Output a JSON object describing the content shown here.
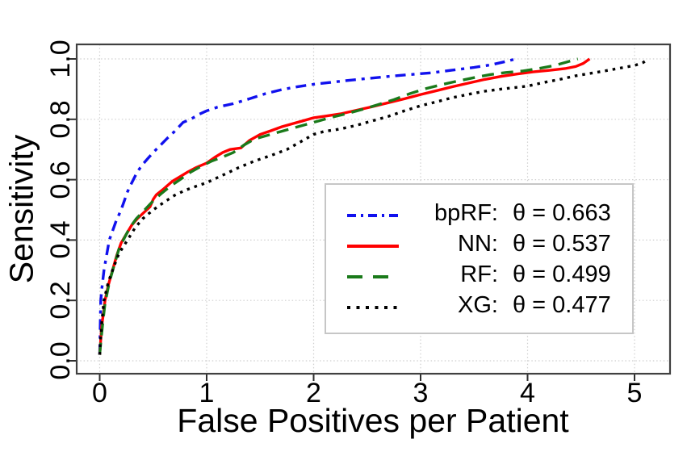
{
  "chart_data": {
    "type": "line",
    "title": "",
    "xlabel": "False Positives per Patient",
    "ylabel": "Sensitivity",
    "x_ticks": [
      "0",
      "1",
      "2",
      "3",
      "4",
      "5"
    ],
    "y_ticks": [
      "0.0",
      "0.2",
      "0.4",
      "0.6",
      "0.8",
      "1.0"
    ],
    "x_tick_values": [
      0,
      1,
      2,
      3,
      4,
      5
    ],
    "y_tick_values": [
      0,
      0.2,
      0.4,
      0.6,
      0.8,
      1.0
    ],
    "xlim": [
      -0.215,
      5.33
    ],
    "ylim": [
      -0.043,
      1.048
    ],
    "grid": true,
    "grid_style": "dotted",
    "legend_position": "inside lower-right",
    "colors": {
      "bpRF": "#1111ee",
      "NN": "#ff0000",
      "RF": "#1a7a1a",
      "XG": "#000000",
      "grid": "#cfcfcf",
      "frame": "#404040"
    },
    "series": [
      {
        "name": "bpRF",
        "metric": "theta",
        "value": 0.663,
        "legend_name": "bpRF:",
        "legend_value": "θ = 0.663",
        "color": "#1111ee",
        "line_style": "dash-dot",
        "points": [
          [
            0.0,
            0.02
          ],
          [
            0.005,
            0.12
          ],
          [
            0.01,
            0.2
          ],
          [
            0.02,
            0.24
          ],
          [
            0.04,
            0.3
          ],
          [
            0.06,
            0.34
          ],
          [
            0.09,
            0.4
          ],
          [
            0.12,
            0.43
          ],
          [
            0.15,
            0.46
          ],
          [
            0.2,
            0.5
          ],
          [
            0.23,
            0.53
          ],
          [
            0.26,
            0.56
          ],
          [
            0.3,
            0.59
          ],
          [
            0.35,
            0.625
          ],
          [
            0.4,
            0.65
          ],
          [
            0.45,
            0.67
          ],
          [
            0.5,
            0.69
          ],
          [
            0.57,
            0.715
          ],
          [
            0.64,
            0.74
          ],
          [
            0.7,
            0.76
          ],
          [
            0.78,
            0.79
          ],
          [
            0.85,
            0.8
          ],
          [
            0.92,
            0.815
          ],
          [
            1.0,
            0.828
          ],
          [
            1.1,
            0.84
          ],
          [
            1.25,
            0.852
          ],
          [
            1.4,
            0.868
          ],
          [
            1.55,
            0.885
          ],
          [
            1.7,
            0.898
          ],
          [
            1.85,
            0.908
          ],
          [
            2.0,
            0.916
          ],
          [
            2.15,
            0.922
          ],
          [
            2.3,
            0.928
          ],
          [
            2.5,
            0.935
          ],
          [
            2.7,
            0.942
          ],
          [
            2.9,
            0.948
          ],
          [
            3.1,
            0.954
          ],
          [
            3.3,
            0.963
          ],
          [
            3.5,
            0.972
          ],
          [
            3.65,
            0.98
          ],
          [
            3.78,
            0.99
          ],
          [
            3.89,
            1.0
          ]
        ]
      },
      {
        "name": "NN",
        "metric": "theta",
        "value": 0.537,
        "legend_name": "NN:",
        "legend_value": "θ = 0.537",
        "color": "#ff0000",
        "line_style": "solid",
        "points": [
          [
            0.0,
            0.02
          ],
          [
            0.01,
            0.07
          ],
          [
            0.02,
            0.12
          ],
          [
            0.04,
            0.17
          ],
          [
            0.05,
            0.2
          ],
          [
            0.08,
            0.25
          ],
          [
            0.12,
            0.3
          ],
          [
            0.16,
            0.35
          ],
          [
            0.2,
            0.39
          ],
          [
            0.25,
            0.42
          ],
          [
            0.3,
            0.45
          ],
          [
            0.35,
            0.47
          ],
          [
            0.41,
            0.49
          ],
          [
            0.47,
            0.51
          ],
          [
            0.5,
            0.535
          ],
          [
            0.53,
            0.55
          ],
          [
            0.6,
            0.57
          ],
          [
            0.68,
            0.595
          ],
          [
            0.75,
            0.61
          ],
          [
            0.82,
            0.625
          ],
          [
            0.9,
            0.64
          ],
          [
            1.0,
            0.655
          ],
          [
            1.08,
            0.675
          ],
          [
            1.15,
            0.69
          ],
          [
            1.22,
            0.7
          ],
          [
            1.32,
            0.705
          ],
          [
            1.4,
            0.73
          ],
          [
            1.5,
            0.75
          ],
          [
            1.6,
            0.762
          ],
          [
            1.7,
            0.775
          ],
          [
            1.8,
            0.785
          ],
          [
            1.9,
            0.795
          ],
          [
            2.0,
            0.805
          ],
          [
            2.1,
            0.81
          ],
          [
            2.25,
            0.818
          ],
          [
            2.4,
            0.83
          ],
          [
            2.55,
            0.842
          ],
          [
            2.7,
            0.855
          ],
          [
            2.85,
            0.868
          ],
          [
            3.0,
            0.882
          ],
          [
            3.15,
            0.895
          ],
          [
            3.3,
            0.908
          ],
          [
            3.45,
            0.92
          ],
          [
            3.6,
            0.932
          ],
          [
            3.75,
            0.942
          ],
          [
            3.9,
            0.95
          ],
          [
            4.05,
            0.957
          ],
          [
            4.2,
            0.962
          ],
          [
            4.35,
            0.968
          ],
          [
            4.45,
            0.975
          ],
          [
            4.52,
            0.985
          ],
          [
            4.56,
            0.995
          ],
          [
            4.58,
            1.0
          ]
        ]
      },
      {
        "name": "RF",
        "metric": "theta",
        "value": 0.499,
        "legend_name": "RF:",
        "legend_value": "θ = 0.499",
        "color": "#1a7a1a",
        "line_style": "long-dash",
        "points": [
          [
            0.0,
            0.02
          ],
          [
            0.01,
            0.06
          ],
          [
            0.03,
            0.13
          ],
          [
            0.05,
            0.19
          ],
          [
            0.09,
            0.26
          ],
          [
            0.13,
            0.31
          ],
          [
            0.18,
            0.37
          ],
          [
            0.22,
            0.4
          ],
          [
            0.28,
            0.44
          ],
          [
            0.34,
            0.47
          ],
          [
            0.42,
            0.5
          ],
          [
            0.5,
            0.53
          ],
          [
            0.58,
            0.555
          ],
          [
            0.66,
            0.578
          ],
          [
            0.75,
            0.6
          ],
          [
            0.85,
            0.625
          ],
          [
            0.95,
            0.645
          ],
          [
            1.05,
            0.662
          ],
          [
            1.15,
            0.675
          ],
          [
            1.25,
            0.69
          ],
          [
            1.35,
            0.715
          ],
          [
            1.45,
            0.735
          ],
          [
            1.55,
            0.745
          ],
          [
            1.65,
            0.755
          ],
          [
            1.75,
            0.765
          ],
          [
            1.85,
            0.775
          ],
          [
            1.95,
            0.785
          ],
          [
            2.05,
            0.795
          ],
          [
            2.15,
            0.805
          ],
          [
            2.3,
            0.818
          ],
          [
            2.45,
            0.832
          ],
          [
            2.6,
            0.848
          ],
          [
            2.75,
            0.865
          ],
          [
            2.9,
            0.885
          ],
          [
            3.05,
            0.902
          ],
          [
            3.2,
            0.915
          ],
          [
            3.35,
            0.927
          ],
          [
            3.5,
            0.938
          ],
          [
            3.65,
            0.948
          ],
          [
            3.8,
            0.955
          ],
          [
            3.95,
            0.96
          ],
          [
            4.1,
            0.968
          ],
          [
            4.25,
            0.978
          ],
          [
            4.37,
            0.99
          ],
          [
            4.47,
            1.0
          ]
        ]
      },
      {
        "name": "XG",
        "metric": "theta",
        "value": 0.477,
        "legend_name": "XG:",
        "legend_value": "θ = 0.477",
        "color": "#000000",
        "line_style": "dotted",
        "points": [
          [
            0.0,
            0.02
          ],
          [
            0.01,
            0.08
          ],
          [
            0.02,
            0.13
          ],
          [
            0.04,
            0.2
          ],
          [
            0.08,
            0.26
          ],
          [
            0.13,
            0.31
          ],
          [
            0.18,
            0.355
          ],
          [
            0.26,
            0.4
          ],
          [
            0.33,
            0.44
          ],
          [
            0.4,
            0.47
          ],
          [
            0.5,
            0.5
          ],
          [
            0.6,
            0.525
          ],
          [
            0.7,
            0.548
          ],
          [
            0.8,
            0.565
          ],
          [
            0.9,
            0.578
          ],
          [
            1.0,
            0.59
          ],
          [
            1.15,
            0.615
          ],
          [
            1.3,
            0.64
          ],
          [
            1.45,
            0.662
          ],
          [
            1.6,
            0.68
          ],
          [
            1.75,
            0.7
          ],
          [
            1.9,
            0.73
          ],
          [
            2.0,
            0.75
          ],
          [
            2.1,
            0.76
          ],
          [
            2.25,
            0.768
          ],
          [
            2.4,
            0.78
          ],
          [
            2.55,
            0.795
          ],
          [
            2.7,
            0.81
          ],
          [
            2.85,
            0.828
          ],
          [
            3.0,
            0.845
          ],
          [
            3.15,
            0.858
          ],
          [
            3.3,
            0.872
          ],
          [
            3.45,
            0.883
          ],
          [
            3.6,
            0.893
          ],
          [
            3.75,
            0.9
          ],
          [
            3.9,
            0.906
          ],
          [
            4.0,
            0.91
          ],
          [
            4.15,
            0.922
          ],
          [
            4.3,
            0.932
          ],
          [
            4.45,
            0.944
          ],
          [
            4.6,
            0.953
          ],
          [
            4.75,
            0.962
          ],
          [
            4.9,
            0.972
          ],
          [
            5.0,
            0.978
          ],
          [
            5.08,
            0.988
          ],
          [
            5.13,
            1.0
          ]
        ]
      }
    ]
  }
}
